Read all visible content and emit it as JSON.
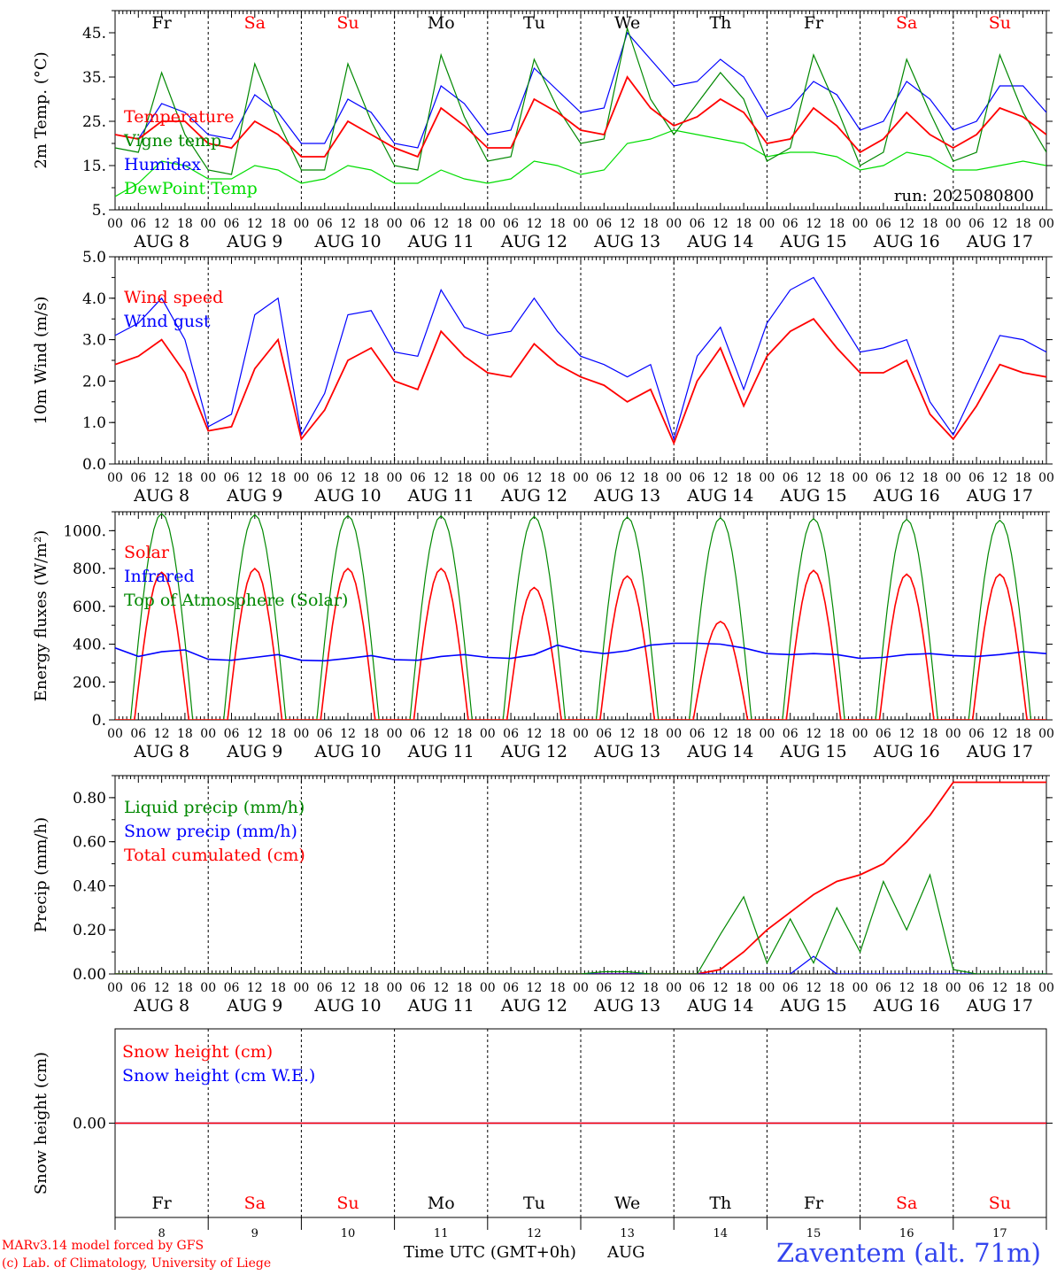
{
  "credits": {
    "model": "MARv3.14 model forced by GFS",
    "lab": "(c) Lab. of Climatology, University of Liege"
  },
  "footer": {
    "xlabel": "Time UTC (GMT+0h)",
    "month": "AUG",
    "station": "Zaventem (alt. 71m)"
  },
  "time_axis": {
    "hour_labels": [
      "00",
      "06",
      "12",
      "18"
    ],
    "date_labels": [
      "AUG  8",
      "AUG  9",
      "AUG 10",
      "AUG 11",
      "AUG 12",
      "AUG 13",
      "AUG 14",
      "AUG 15",
      "AUG 16",
      "AUG 17"
    ],
    "day_numbers": [
      "8",
      "9",
      "10",
      "11",
      "12",
      "13",
      "14",
      "15",
      "16",
      "17"
    ],
    "weekdays": [
      "Fr",
      "Sa",
      "Su",
      "Mo",
      "Tu",
      "We",
      "Th",
      "Fr",
      "Sa",
      "Su"
    ],
    "weekend_color": "#ff0000",
    "weekday_color": "#000000"
  },
  "colors": {
    "red": "#ff0000",
    "green": "#008800",
    "blue": "#0000ff",
    "lightgreen": "#00dd00",
    "footer_blue": "#3344ee"
  },
  "chart_data": [
    {
      "type": "line",
      "ylabel": "2m Temp. (°C)",
      "annotation": "run: 2025080800",
      "ylim": [
        5,
        50
      ],
      "yticks": [
        5,
        15,
        25,
        35,
        45
      ],
      "ytick_labels": [
        "5.",
        "15.",
        "25.",
        "35.",
        "45."
      ],
      "x_hours": [
        0,
        6,
        12,
        18,
        24,
        30,
        36,
        42,
        48,
        54,
        60,
        66,
        72,
        78,
        84,
        90,
        96,
        102,
        108,
        114,
        120,
        126,
        132,
        138,
        144,
        150,
        156,
        162,
        168,
        174,
        180,
        186,
        192,
        198,
        204,
        210,
        216,
        222,
        228,
        234,
        240
      ],
      "series": [
        {
          "name": "Temperature",
          "color": "#ff0000",
          "values": [
            22,
            21,
            25,
            25,
            20,
            19,
            25,
            22,
            17,
            17,
            25,
            22,
            19,
            17,
            28,
            24,
            19,
            19,
            30,
            27,
            23,
            22,
            35,
            28,
            24,
            26,
            30,
            27,
            20,
            21,
            28,
            24,
            18,
            21,
            27,
            22,
            19,
            22,
            28,
            26,
            22
          ]
        },
        {
          "name": "Vigne temp",
          "color": "#008800",
          "values": [
            19,
            18,
            36,
            22,
            14,
            13,
            38,
            25,
            14,
            14,
            38,
            25,
            15,
            14,
            40,
            26,
            16,
            17,
            39,
            28,
            20,
            21,
            46,
            30,
            22,
            29,
            36,
            30,
            16,
            19,
            40,
            28,
            15,
            18,
            39,
            27,
            16,
            18,
            40,
            27,
            18
          ]
        },
        {
          "name": "Humidex",
          "color": "#0000ff",
          "values": [
            22,
            21,
            29,
            27,
            22,
            21,
            31,
            27,
            20,
            20,
            30,
            27,
            20,
            19,
            33,
            29,
            22,
            23,
            37,
            32,
            27,
            28,
            45,
            39,
            33,
            34,
            39,
            35,
            26,
            28,
            34,
            31,
            23,
            25,
            34,
            30,
            23,
            25,
            33,
            33,
            27
          ]
        },
        {
          "name": "DewPoint Temp",
          "color": "#00dd00",
          "values": [
            8,
            11,
            16,
            15,
            12,
            12,
            15,
            14,
            11,
            12,
            15,
            14,
            11,
            11,
            14,
            12,
            11,
            12,
            16,
            15,
            13,
            14,
            20,
            21,
            23,
            22,
            21,
            20,
            17,
            18,
            18,
            17,
            14,
            15,
            18,
            17,
            14,
            14,
            15,
            16,
            15
          ]
        }
      ]
    },
    {
      "type": "line",
      "ylabel": "10m Wind (m/s)",
      "ylim": [
        0,
        5
      ],
      "yticks": [
        0,
        1,
        2,
        3,
        4,
        5
      ],
      "ytick_labels": [
        "0.0",
        "1.0",
        "2.0",
        "3.0",
        "4.0",
        "5.0"
      ],
      "x_hours": [
        0,
        6,
        12,
        18,
        24,
        30,
        36,
        42,
        48,
        54,
        60,
        66,
        72,
        78,
        84,
        90,
        96,
        102,
        108,
        114,
        120,
        126,
        132,
        138,
        144,
        150,
        156,
        162,
        168,
        174,
        180,
        186,
        192,
        198,
        204,
        210,
        216,
        222,
        228,
        234,
        240
      ],
      "series": [
        {
          "name": "Wind speed",
          "color": "#ff0000",
          "values": [
            2.4,
            2.6,
            3.0,
            2.2,
            0.8,
            0.9,
            2.3,
            3.0,
            0.6,
            1.3,
            2.5,
            2.8,
            2.0,
            1.8,
            3.2,
            2.6,
            2.2,
            2.1,
            2.9,
            2.4,
            2.1,
            1.9,
            1.5,
            1.8,
            0.5,
            2.0,
            2.8,
            1.4,
            2.6,
            3.2,
            3.5,
            2.8,
            2.2,
            2.2,
            2.5,
            1.2,
            0.6,
            1.4,
            2.4,
            2.2,
            2.1
          ]
        },
        {
          "name": "Wind gust",
          "color": "#0000ff",
          "values": [
            3.1,
            3.4,
            4.0,
            3.0,
            0.9,
            1.2,
            3.6,
            4.0,
            0.7,
            1.7,
            3.6,
            3.7,
            2.7,
            2.6,
            4.2,
            3.3,
            3.1,
            3.2,
            4.0,
            3.2,
            2.6,
            2.4,
            2.1,
            2.4,
            0.6,
            2.6,
            3.3,
            1.8,
            3.4,
            4.2,
            4.5,
            3.6,
            2.7,
            2.8,
            3.0,
            1.5,
            0.7,
            1.9,
            3.1,
            3.0,
            2.7
          ]
        }
      ]
    },
    {
      "type": "line",
      "ylabel": "Energy fluxes (W/m²)",
      "ylim": [
        0,
        1100
      ],
      "yticks": [
        0,
        200,
        400,
        600,
        800,
        1000
      ],
      "ytick_labels": [
        "0.",
        "200.",
        "400.",
        "600.",
        "800.",
        "1000."
      ],
      "daily_peaks": {
        "Top of Atmosphere (Solar)": [
          1090,
          1085,
          1080,
          1078,
          1075,
          1072,
          1068,
          1064,
          1060,
          1055
        ],
        "Solar": [
          780,
          800,
          800,
          800,
          700,
          760,
          520,
          790,
          770,
          770
        ]
      },
      "x_hours": [
        0,
        6,
        12,
        18,
        24,
        30,
        36,
        42,
        48,
        54,
        60,
        66,
        72,
        78,
        84,
        90,
        96,
        102,
        108,
        114,
        120,
        126,
        132,
        138,
        144,
        150,
        156,
        162,
        168,
        174,
        180,
        186,
        192,
        198,
        204,
        210,
        216,
        222,
        228,
        234,
        240
      ],
      "series": [
        {
          "name": "Solar",
          "color": "#ff0000"
        },
        {
          "name": "Infrared",
          "color": "#0000ff",
          "values": [
            380,
            335,
            360,
            370,
            320,
            315,
            330,
            345,
            315,
            312,
            325,
            340,
            318,
            315,
            335,
            345,
            330,
            325,
            345,
            395,
            365,
            350,
            365,
            395,
            405,
            405,
            400,
            380,
            350,
            345,
            350,
            345,
            325,
            330,
            345,
            350,
            340,
            335,
            345,
            360,
            350
          ]
        },
        {
          "name": "Top of Atmosphere (Solar)",
          "color": "#008800"
        }
      ]
    },
    {
      "type": "line",
      "ylabel": "Precip (mm/h)",
      "ylim": [
        0,
        0.9
      ],
      "yticks": [
        0,
        0.2,
        0.4,
        0.6,
        0.8
      ],
      "ytick_labels": [
        "0.00",
        "0.20",
        "0.40",
        "0.60",
        "0.80"
      ],
      "x_hours": [
        0,
        6,
        12,
        18,
        24,
        30,
        36,
        42,
        48,
        54,
        60,
        66,
        72,
        78,
        84,
        90,
        96,
        102,
        108,
        114,
        120,
        126,
        132,
        138,
        144,
        150,
        156,
        162,
        168,
        174,
        180,
        186,
        192,
        198,
        204,
        210,
        216,
        222,
        228,
        234,
        240
      ],
      "series": [
        {
          "name": "Liquid precip (mm/h)",
          "color": "#008800",
          "values": [
            0,
            0,
            0,
            0,
            0,
            0,
            0,
            0,
            0,
            0,
            0,
            0,
            0,
            0,
            0,
            0,
            0,
            0,
            0,
            0,
            0,
            0.01,
            0.01,
            0,
            0,
            0,
            0.18,
            0.35,
            0.05,
            0.25,
            0.05,
            0.3,
            0.1,
            0.42,
            0.2,
            0.45,
            0.02,
            0,
            0,
            0,
            0
          ]
        },
        {
          "name": "Snow precip (mm/h)",
          "color": "#0000ff",
          "values": [
            0,
            0,
            0,
            0,
            0,
            0,
            0,
            0,
            0,
            0,
            0,
            0,
            0,
            0,
            0,
            0,
            0,
            0,
            0,
            0,
            0,
            0,
            0,
            0,
            0,
            0,
            0,
            0,
            0,
            0,
            0.08,
            0,
            0,
            0,
            0,
            0,
            0,
            0,
            0,
            0,
            0
          ]
        },
        {
          "name": "Total cumulated (cm)",
          "color": "#ff0000",
          "values": [
            0,
            0,
            0,
            0,
            0,
            0,
            0,
            0,
            0,
            0,
            0,
            0,
            0,
            0,
            0,
            0,
            0,
            0,
            0,
            0,
            0,
            0,
            0,
            0,
            0,
            0,
            0.02,
            0.1,
            0.2,
            0.28,
            0.36,
            0.42,
            0.45,
            0.5,
            0.6,
            0.72,
            0.87,
            0.87,
            0.87,
            0.87,
            0.87
          ]
        }
      ]
    },
    {
      "type": "line",
      "ylabel": "Snow height (cm)",
      "ylim": [
        -1,
        1
      ],
      "yticks": [
        0
      ],
      "ytick_labels": [
        "0.00"
      ],
      "series": [
        {
          "name": "Snow height (cm)",
          "color": "#ff0000",
          "values": [
            0,
            0
          ]
        },
        {
          "name": "Snow height (cm W.E.)",
          "color": "#0000ff",
          "values": [
            0,
            0
          ]
        }
      ]
    }
  ]
}
